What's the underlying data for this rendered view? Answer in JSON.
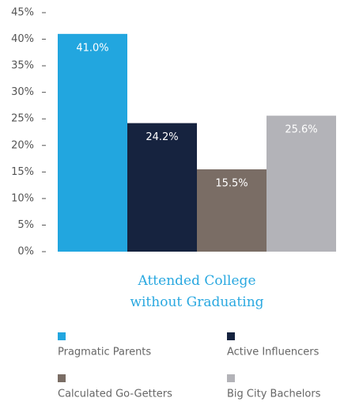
{
  "chart_data": {
    "type": "bar",
    "categories": [
      "Attended College without Graduating"
    ],
    "series": [
      {
        "name": "Pragmatic Parents",
        "color": "#22a6df",
        "values": [
          41.0
        ],
        "value_labels": [
          "41.0%"
        ]
      },
      {
        "name": "Active Influencers",
        "color": "#16233f",
        "values": [
          24.2
        ],
        "value_labels": [
          "24.2%"
        ]
      },
      {
        "name": "Calculated Go-Getters",
        "color": "#7a6d65",
        "values": [
          15.5
        ],
        "value_labels": [
          "15.5%"
        ]
      },
      {
        "name": "Big City Bachelors",
        "color": "#b3b3b8",
        "values": [
          25.6
        ],
        "value_labels": [
          "25.6%"
        ]
      }
    ],
    "ylim": [
      0,
      45
    ],
    "yticks": [
      {
        "value": 0,
        "label": "0%"
      },
      {
        "value": 5,
        "label": "5%"
      },
      {
        "value": 10,
        "label": "10%"
      },
      {
        "value": 15,
        "label": "15%"
      },
      {
        "value": 20,
        "label": "20%"
      },
      {
        "value": 25,
        "label": "25%"
      },
      {
        "value": 30,
        "label": "30%"
      },
      {
        "value": 35,
        "label": "35%"
      },
      {
        "value": 40,
        "label": "40%"
      },
      {
        "value": 45,
        "label": "45%"
      }
    ],
    "grid": false
  }
}
